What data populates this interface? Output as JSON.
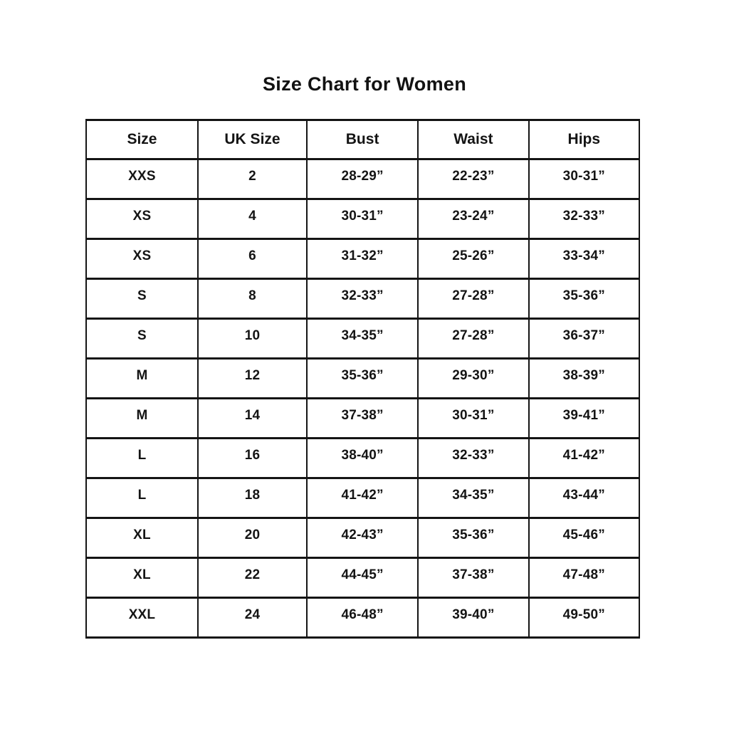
{
  "title": "Size Chart for Women",
  "colors": {
    "background": "#ffffff",
    "border": "#141414",
    "text": "#141414"
  },
  "chart_data": {
    "type": "table",
    "title": "Size Chart for Women",
    "columns": [
      "Size",
      "UK Size",
      "Bust",
      "Waist",
      "Hips"
    ],
    "rows": [
      [
        "XXS",
        "2",
        "28-29”",
        "22-23”",
        "30-31”"
      ],
      [
        "XS",
        "4",
        "30-31”",
        "23-24”",
        "32-33”"
      ],
      [
        "XS",
        "6",
        "31-32”",
        "25-26”",
        "33-34”"
      ],
      [
        "S",
        "8",
        "32-33”",
        "27-28”",
        "35-36”"
      ],
      [
        "S",
        "10",
        "34-35”",
        "27-28”",
        "36-37”"
      ],
      [
        "M",
        "12",
        "35-36”",
        "29-30”",
        "38-39”"
      ],
      [
        "M",
        "14",
        "37-38”",
        "30-31”",
        "39-41”"
      ],
      [
        "L",
        "16",
        "38-40”",
        "32-33”",
        "41-42”"
      ],
      [
        "L",
        "18",
        "41-42”",
        "34-35”",
        "43-44”"
      ],
      [
        "XL",
        "20",
        "42-43”",
        "35-36”",
        "45-46”"
      ],
      [
        "XL",
        "22",
        "44-45”",
        "37-38”",
        "47-48”"
      ],
      [
        "XXL",
        "24",
        "46-48”",
        "39-40”",
        "49-50”"
      ]
    ]
  }
}
